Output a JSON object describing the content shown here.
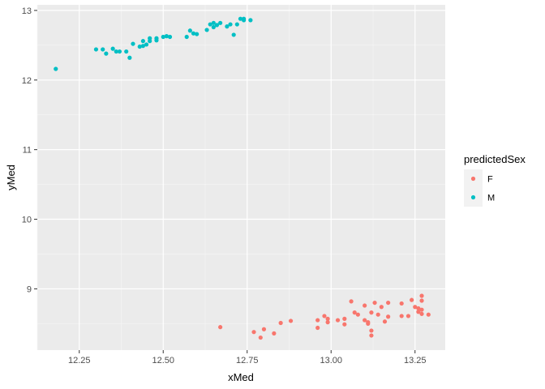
{
  "chart_data": {
    "type": "scatter",
    "title": "",
    "xlabel": "xMed",
    "ylabel": "yMed",
    "xlim": [
      12.125,
      13.34
    ],
    "ylim": [
      8.12,
      13.08
    ],
    "x_ticks": [
      12.25,
      12.5,
      12.75,
      13.0,
      13.25
    ],
    "x_tick_labels": [
      "12.25",
      "12.50",
      "12.75",
      "13.00",
      "13.25"
    ],
    "y_ticks": [
      9,
      10,
      11,
      12,
      13
    ],
    "y_tick_labels": [
      "9",
      "10",
      "11",
      "12",
      "13"
    ],
    "grid": true,
    "legend": {
      "title": "predictedSex",
      "placement": "right",
      "entries": [
        {
          "label": "F",
          "color": "#F8766D"
        },
        {
          "label": "M",
          "color": "#00BFC4"
        }
      ]
    },
    "series": [
      {
        "name": "F",
        "color": "#F8766D",
        "points": [
          [
            12.67,
            8.45
          ],
          [
            12.77,
            8.38
          ],
          [
            12.79,
            8.3
          ],
          [
            12.8,
            8.42
          ],
          [
            12.83,
            8.36
          ],
          [
            12.85,
            8.51
          ],
          [
            12.88,
            8.54
          ],
          [
            12.96,
            8.44
          ],
          [
            12.96,
            8.55
          ],
          [
            12.98,
            8.61
          ],
          [
            12.99,
            8.52
          ],
          [
            12.99,
            8.57
          ],
          [
            13.02,
            8.55
          ],
          [
            13.04,
            8.49
          ],
          [
            13.04,
            8.57
          ],
          [
            13.06,
            8.82
          ],
          [
            13.07,
            8.66
          ],
          [
            13.08,
            8.63
          ],
          [
            13.1,
            8.76
          ],
          [
            13.1,
            8.55
          ],
          [
            13.11,
            8.52
          ],
          [
            13.11,
            8.5
          ],
          [
            13.12,
            8.4
          ],
          [
            13.12,
            8.66
          ],
          [
            13.12,
            8.33
          ],
          [
            13.13,
            8.8
          ],
          [
            13.14,
            8.63
          ],
          [
            13.15,
            8.74
          ],
          [
            13.16,
            8.53
          ],
          [
            13.17,
            8.8
          ],
          [
            13.17,
            8.6
          ],
          [
            13.21,
            8.79
          ],
          [
            13.21,
            8.61
          ],
          [
            13.23,
            8.61
          ],
          [
            13.24,
            8.84
          ],
          [
            13.25,
            8.74
          ],
          [
            13.26,
            8.72
          ],
          [
            13.26,
            8.67
          ],
          [
            13.27,
            8.7
          ],
          [
            13.27,
            8.9
          ],
          [
            13.27,
            8.83
          ],
          [
            13.27,
            8.64
          ],
          [
            13.29,
            8.63
          ]
        ]
      },
      {
        "name": "M",
        "color": "#00BFC4",
        "points": [
          [
            12.18,
            12.16
          ],
          [
            12.3,
            12.44
          ],
          [
            12.32,
            12.44
          ],
          [
            12.33,
            12.38
          ],
          [
            12.35,
            12.45
          ],
          [
            12.36,
            12.41
          ],
          [
            12.37,
            12.41
          ],
          [
            12.39,
            12.41
          ],
          [
            12.4,
            12.32
          ],
          [
            12.41,
            12.52
          ],
          [
            12.43,
            12.48
          ],
          [
            12.44,
            12.56
          ],
          [
            12.44,
            12.49
          ],
          [
            12.45,
            12.51
          ],
          [
            12.46,
            12.56
          ],
          [
            12.46,
            12.6
          ],
          [
            12.48,
            12.57
          ],
          [
            12.48,
            12.6
          ],
          [
            12.5,
            12.62
          ],
          [
            12.51,
            12.63
          ],
          [
            12.52,
            12.62
          ],
          [
            12.57,
            12.62
          ],
          [
            12.58,
            12.71
          ],
          [
            12.59,
            12.67
          ],
          [
            12.6,
            12.66
          ],
          [
            12.63,
            12.72
          ],
          [
            12.64,
            12.8
          ],
          [
            12.65,
            12.76
          ],
          [
            12.65,
            12.82
          ],
          [
            12.66,
            12.79
          ],
          [
            12.67,
            12.82
          ],
          [
            12.69,
            12.77
          ],
          [
            12.7,
            12.8
          ],
          [
            12.71,
            12.65
          ],
          [
            12.72,
            12.8
          ],
          [
            12.73,
            12.88
          ],
          [
            12.74,
            12.88
          ],
          [
            12.74,
            12.86
          ],
          [
            12.76,
            12.86
          ]
        ]
      }
    ]
  }
}
